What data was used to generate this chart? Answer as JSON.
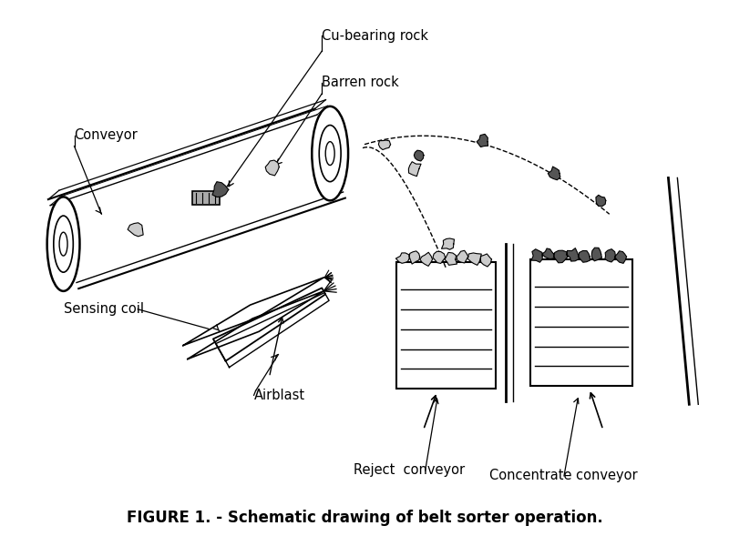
{
  "title": "FIGURE 1. - Schematic drawing of belt sorter operation.",
  "title_fontsize": 12,
  "bg_color": "#ffffff",
  "line_color": "#000000",
  "labels": {
    "cu_bearing_rock": "Cu-bearing rock",
    "barren_rock": "Barren rock",
    "conveyor": "Conveyor",
    "sensing_coil": "Sensing coil",
    "airblast": "Airblast",
    "reject_conveyor": "Reject  conveyor",
    "concentrate_conveyor": "Concentrate conveyor"
  },
  "figsize": [
    8.0,
    5.89
  ],
  "dpi": 100
}
